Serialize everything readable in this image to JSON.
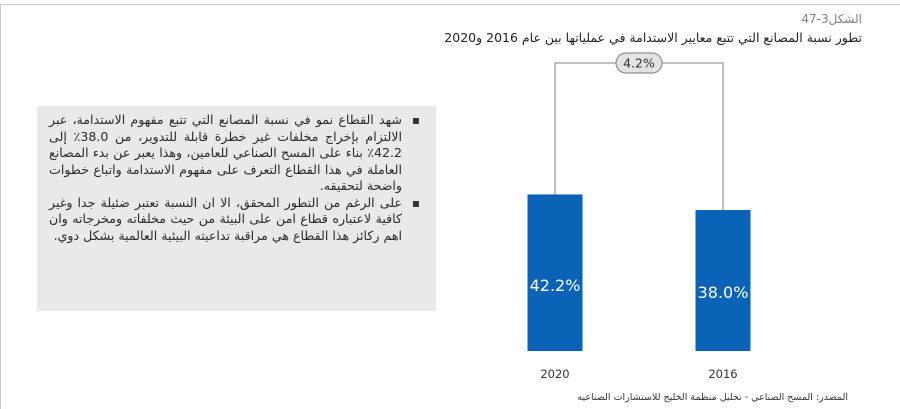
{
  "figure_number": "الشكل3-47",
  "figure_title": "تطور نسبة المصانع التي تتبع معايير الاستدامة في عملياتها بين عام 2016 و2020",
  "bullets": [
    "شهد القطاع نمو في نسبة المصانع التي تتبع مفهوم الاستدامة، عبر الالتزام بإخراج مخلفات غير خطرة قابلة للتدوير، من 38.0٪ إلى 42.2٪ بناء على المسح الصناعي للعامين، وهذا يعبر عن بدء المصانع العاملة في هذا القطاع التعرف على مفهوم الاستدامة واتباع خطوات واضحة لتحقيقه.",
    "على الرغم من التطور المحقق، الا ان النسبة تعتبر ضئيلة جدا وغير كافية لاعتباره قطاع امن على البيئة من حيث مخلفاته ومخرجاته وان اهم ركائز هذا القطاع هي مراقبة تداعيته البيئية العالمية بشكل دوي."
  ],
  "source": "المصدر: المسح الصناعي - تحليل منظمة الخليج للاستشارات الصناعيه",
  "colors": {
    "bar": "#0a63b7",
    "bar_label": "#ffffff",
    "connector": "#9a9a9a",
    "badge_bg": "#e3e3e3",
    "badge_border": "#8f8f8f"
  },
  "chart_data": {
    "type": "bar",
    "categories": [
      "2020",
      "2016"
    ],
    "values": [
      42.2,
      38.0
    ],
    "value_labels": [
      "42.2%",
      "38.0%"
    ],
    "change_label": "4.2%",
    "title": "",
    "xlabel": "",
    "ylabel": ""
  }
}
